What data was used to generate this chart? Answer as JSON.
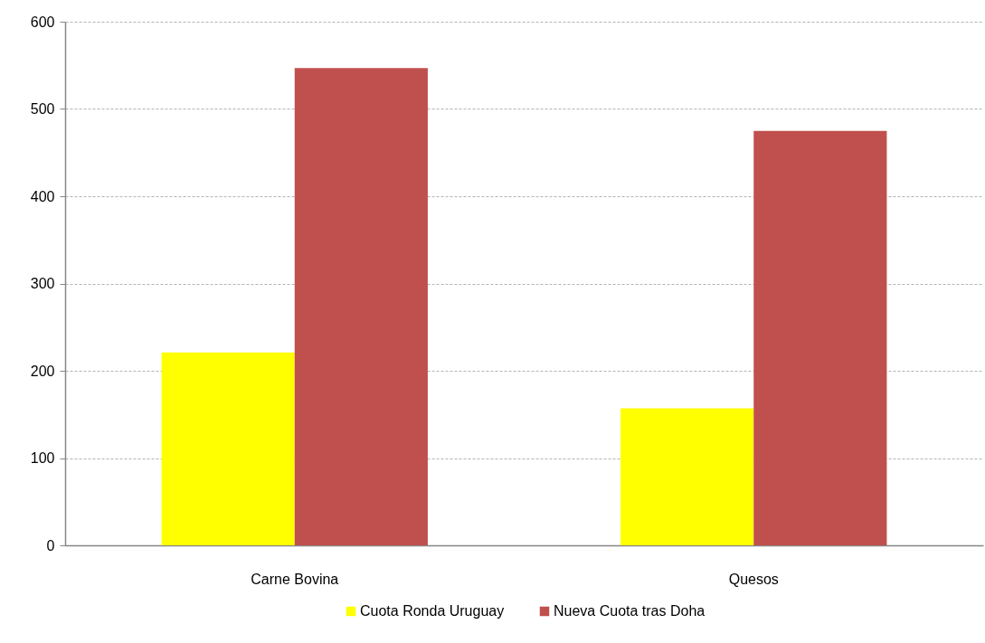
{
  "chart_data": {
    "type": "bar",
    "categories": [
      "Carne Bovina",
      "Quesos"
    ],
    "series": [
      {
        "name": "Cuota Ronda Uruguay",
        "color": "#ffff00",
        "values": [
          221,
          157
        ]
      },
      {
        "name": "Nueva Cuota tras Doha",
        "color": "#c0504d",
        "values": [
          547,
          475
        ]
      }
    ],
    "ylim": [
      0,
      600
    ],
    "yticks": [
      0,
      100,
      200,
      300,
      400,
      500,
      600
    ],
    "grid": "y",
    "legend": "bottom"
  }
}
